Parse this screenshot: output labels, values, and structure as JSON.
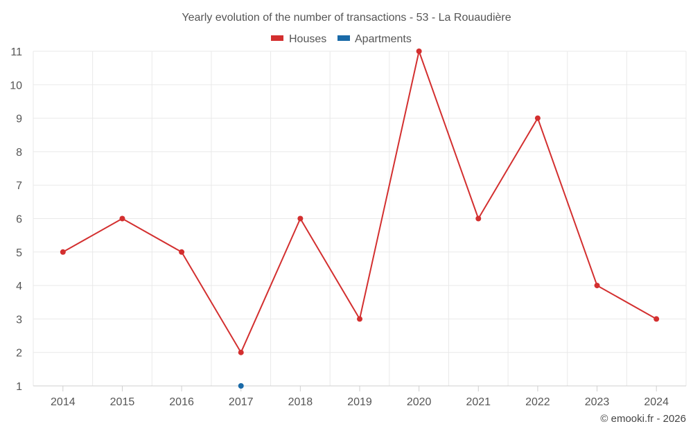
{
  "chart_data": {
    "type": "line",
    "title": "Yearly evolution of the number of transactions - 53 - La Rouaudière",
    "categories": [
      "2014",
      "2015",
      "2016",
      "2017",
      "2018",
      "2019",
      "2020",
      "2021",
      "2022",
      "2023",
      "2024"
    ],
    "series": [
      {
        "name": "Houses",
        "color": "#d32f2f",
        "values": [
          5,
          6,
          5,
          2,
          6,
          3,
          11,
          6,
          9,
          4,
          3
        ]
      },
      {
        "name": "Apartments",
        "color": "#1a6aa8",
        "values": [
          null,
          null,
          null,
          1,
          null,
          null,
          null,
          null,
          null,
          null,
          null
        ]
      }
    ],
    "ylim": [
      1,
      11
    ],
    "yticks": [
      "1",
      "2",
      "3",
      "4",
      "5",
      "6",
      "7",
      "8",
      "9",
      "10",
      "11"
    ],
    "grid": true,
    "legend": "top-center",
    "xlabel": "",
    "ylabel": ""
  },
  "credit": "© emooki.fr - 2026"
}
